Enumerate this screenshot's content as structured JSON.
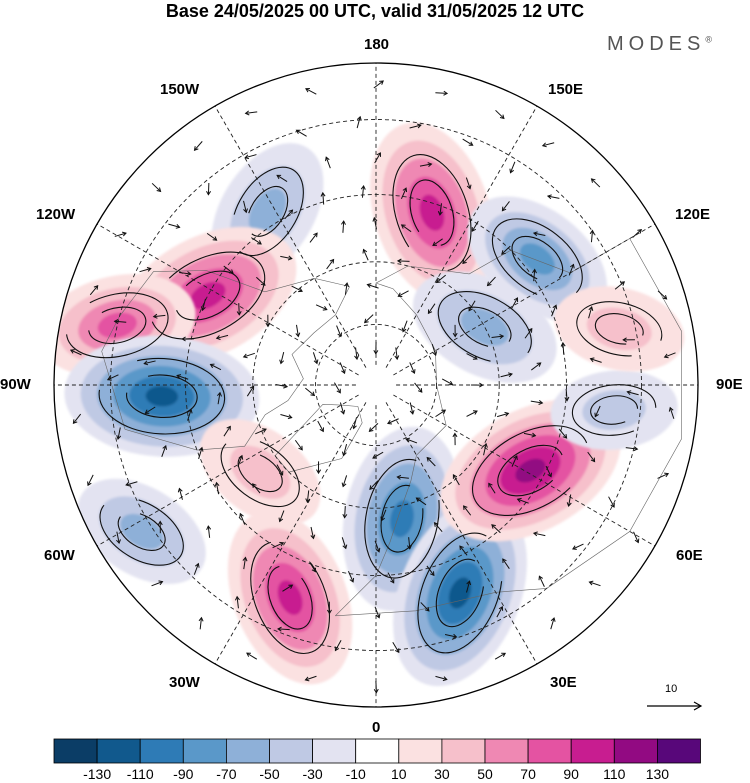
{
  "header": {
    "title": "Base 24/05/2025 00 UTC, valid 31/05/2025 12 UTC",
    "brand": "MODES",
    "brand_mark": "®"
  },
  "map": {
    "projection": "north-polar-stereographic",
    "longitude_labels": {
      "lon_180": "180",
      "lon_150w": "150W",
      "lon_150e": "150E",
      "lon_120w": "120W",
      "lon_120e": "120E",
      "lon_90w": "90W",
      "lon_90e": "90E",
      "lon_60w": "60W",
      "lon_60e": "60E",
      "lon_30w": "30W",
      "lon_30e": "30E",
      "lon_0": "0"
    },
    "reference_vector": {
      "label": "10"
    },
    "anomaly_centers": [
      {
        "name": "anomaly-150e-positive",
        "lon": 162,
        "lat": 47,
        "value": 100
      },
      {
        "name": "anomaly-130e-negative",
        "lon": 128,
        "lat": 42,
        "value": -70
      },
      {
        "name": "anomaly-165w-negative",
        "lon": -148,
        "lat": 42,
        "value": -60
      },
      {
        "name": "anomaly-125w-positive",
        "lon": -118,
        "lat": 45,
        "value": 105
      },
      {
        "name": "anomaly-100w-positive",
        "lon": -103,
        "lat": 30,
        "value": 70
      },
      {
        "name": "anomaly-90w-negative",
        "lon": -87,
        "lat": 40,
        "value": -110
      },
      {
        "name": "anomaly-60w-positive",
        "lon": -53,
        "lat": 55,
        "value": 45
      },
      {
        "name": "anomaly-55w-negative",
        "lon": -58,
        "lat": 28,
        "value": -50
      },
      {
        "name": "anomaly-30w-positive",
        "lon": -22,
        "lat": 37,
        "value": 95
      },
      {
        "name": "anomaly-10e-negative",
        "lon": 11,
        "lat": 57,
        "value": -100
      },
      {
        "name": "anomaly-25e-negative",
        "lon": 22,
        "lat": 38,
        "value": -110
      },
      {
        "name": "anomaly-60e-positive",
        "lon": 61,
        "lat": 48,
        "value": 110
      },
      {
        "name": "anomaly-85e-negative",
        "lon": 84,
        "lat": 35,
        "value": -35
      },
      {
        "name": "anomaly-100e-positive",
        "lon": 103,
        "lat": 33,
        "value": 40
      },
      {
        "name": "anomaly-120e-negative",
        "lon": 118,
        "lat": 60,
        "value": -65
      }
    ]
  },
  "colorbar": {
    "colors": [
      "#0b3d66",
      "#11598d",
      "#2e7bb6",
      "#5a98c9",
      "#8eb0d8",
      "#bfc9e4",
      "#e3e3f1",
      "#ffffff",
      "#fbe1e1",
      "#f6c0cb",
      "#ef88b3",
      "#e453a2",
      "#c81d90",
      "#920a82",
      "#58077a"
    ],
    "tick_labels": [
      "-130",
      "-110",
      "-90",
      "-70",
      "-50",
      "-30",
      "-10",
      "10",
      "30",
      "50",
      "70",
      "90",
      "110",
      "130"
    ]
  }
}
